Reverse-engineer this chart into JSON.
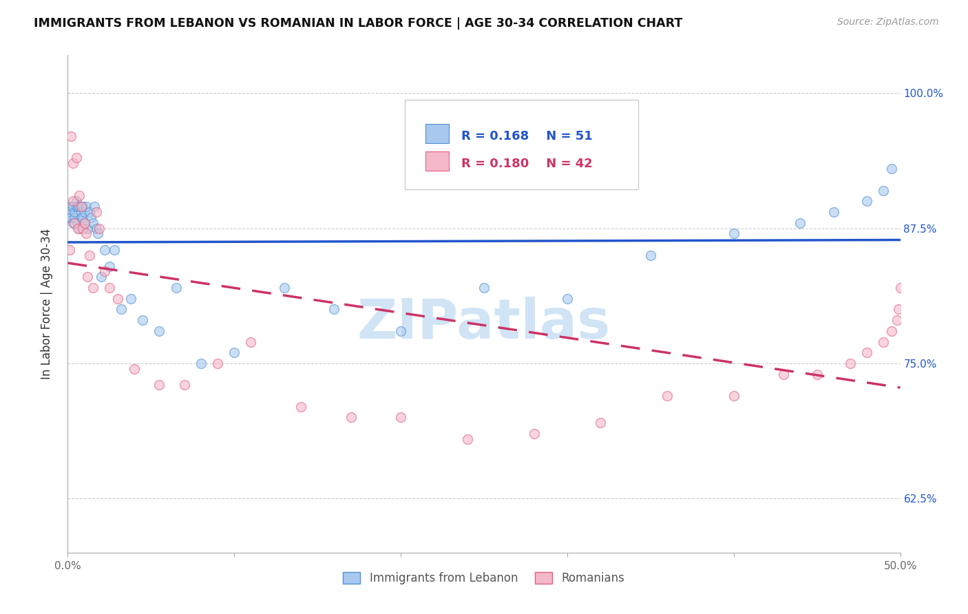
{
  "title": "IMMIGRANTS FROM LEBANON VS ROMANIAN IN LABOR FORCE | AGE 30-34 CORRELATION CHART",
  "source": "Source: ZipAtlas.com",
  "ylabel": "In Labor Force | Age 30-34",
  "xlim": [
    0.0,
    0.5
  ],
  "ylim": [
    0.575,
    1.035
  ],
  "xticks": [
    0.0,
    0.1,
    0.2,
    0.3,
    0.4,
    0.5
  ],
  "xticklabels": [
    "0.0%",
    "",
    "",
    "",
    "",
    "50.0%"
  ],
  "yticks": [
    0.625,
    0.75,
    0.875,
    1.0
  ],
  "yticklabels": [
    "62.5%",
    "75.0%",
    "87.5%",
    "100.0%"
  ],
  "lebanon_color": "#A8C8F0",
  "romanian_color": "#F5B8C8",
  "lebanon_edge_color": "#5090D0",
  "romanian_edge_color": "#E06080",
  "lebanon_line_color": "#2255CC",
  "romanian_line_color": "#CC3366",
  "watermark_color": "#D0E4F5",
  "scatter_alpha": 0.6,
  "scatter_size": 100,
  "lebanon_x": [
    0.001,
    0.001,
    0.002,
    0.002,
    0.003,
    0.003,
    0.004,
    0.004,
    0.005,
    0.005,
    0.006,
    0.006,
    0.007,
    0.007,
    0.008,
    0.008,
    0.009,
    0.009,
    0.01,
    0.01,
    0.011,
    0.012,
    0.013,
    0.014,
    0.015,
    0.016,
    0.017,
    0.018,
    0.02,
    0.022,
    0.025,
    0.028,
    0.032,
    0.038,
    0.045,
    0.055,
    0.065,
    0.08,
    0.1,
    0.13,
    0.16,
    0.2,
    0.25,
    0.3,
    0.35,
    0.4,
    0.44,
    0.46,
    0.48,
    0.49,
    0.495
  ],
  "lebanon_y": [
    0.885,
    0.89,
    0.885,
    0.895,
    0.88,
    0.895,
    0.885,
    0.89,
    0.895,
    0.9,
    0.88,
    0.895,
    0.875,
    0.895,
    0.885,
    0.89,
    0.885,
    0.895,
    0.88,
    0.89,
    0.895,
    0.875,
    0.89,
    0.885,
    0.88,
    0.895,
    0.875,
    0.87,
    0.83,
    0.855,
    0.84,
    0.855,
    0.8,
    0.81,
    0.79,
    0.78,
    0.82,
    0.75,
    0.76,
    0.82,
    0.8,
    0.78,
    0.82,
    0.81,
    0.85,
    0.87,
    0.88,
    0.89,
    0.9,
    0.91,
    0.93
  ],
  "romanian_x": [
    0.001,
    0.002,
    0.003,
    0.003,
    0.004,
    0.005,
    0.006,
    0.007,
    0.008,
    0.009,
    0.01,
    0.011,
    0.012,
    0.013,
    0.015,
    0.017,
    0.019,
    0.022,
    0.025,
    0.03,
    0.04,
    0.055,
    0.07,
    0.09,
    0.11,
    0.14,
    0.17,
    0.2,
    0.24,
    0.28,
    0.32,
    0.36,
    0.4,
    0.43,
    0.45,
    0.47,
    0.48,
    0.49,
    0.495,
    0.498,
    0.499,
    0.5
  ],
  "romanian_y": [
    0.855,
    0.96,
    0.9,
    0.935,
    0.88,
    0.94,
    0.875,
    0.905,
    0.895,
    0.875,
    0.88,
    0.87,
    0.83,
    0.85,
    0.82,
    0.89,
    0.875,
    0.835,
    0.82,
    0.81,
    0.745,
    0.73,
    0.73,
    0.75,
    0.77,
    0.71,
    0.7,
    0.7,
    0.68,
    0.685,
    0.695,
    0.72,
    0.72,
    0.74,
    0.74,
    0.75,
    0.76,
    0.77,
    0.78,
    0.79,
    0.8,
    0.82
  ],
  "legend_r1": "R = 0.168",
  "legend_n1": "N = 51",
  "legend_r2": "R = 0.180",
  "legend_n2": "N = 42",
  "legend_label1": "Immigrants from Lebanon",
  "legend_label2": "Romanians"
}
